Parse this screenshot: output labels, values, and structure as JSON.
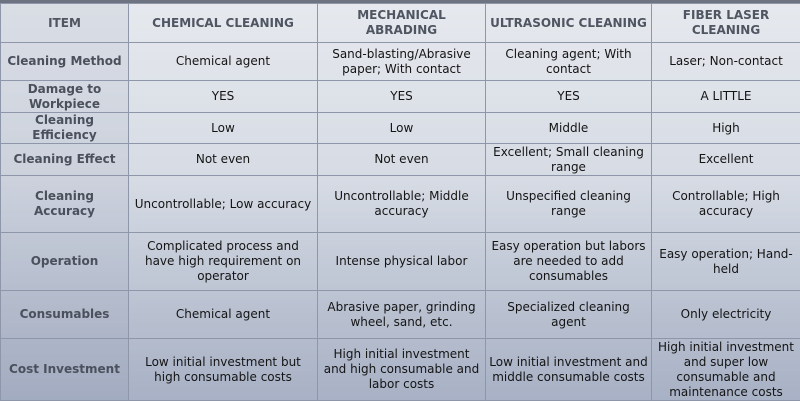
{
  "header": [
    "ITEM",
    "CHEMICAL CLEANING",
    "MECHANICAL ABRADING",
    "ULTRASONIC CLEANING",
    "FIBER LASER CLEANING"
  ],
  "rows": [
    [
      "Cleaning Method",
      "Chemical agent",
      "Sand-blasting/Abrasive paper; With contact",
      "Cleaning agent; With contact",
      "Laser; Non-contact"
    ],
    [
      "Damage to Workpiece",
      "YES",
      "YES",
      "YES",
      "A LITTLE"
    ],
    [
      "Cleaning Efficiency",
      "Low",
      "Low",
      "Middle",
      "High"
    ],
    [
      "Cleaning Effect",
      "Not even",
      "Not even",
      "Excellent; Small cleaning range",
      "Excellent"
    ],
    [
      "Cleaning Accuracy",
      "Uncontrollable; Low accuracy",
      "Uncontrollable; Middle accuracy",
      "Unspecified cleaning range",
      "Controllable; High accuracy"
    ],
    [
      "Operation",
      "Complicated process and have high requirement on operator",
      "Intense physical labor",
      "Easy operation but labors are needed to add consumables",
      "Easy operation; Hand-held"
    ],
    [
      "Consumables",
      "Chemical agent",
      "Abrasive paper, grinding wheel, sand, etc.",
      "Specialized cleaning agent",
      "Only electricity"
    ],
    [
      "Cost Investment",
      "Low initial investment but high consumable costs",
      "High initial investment and high consumable and labor costs",
      "Low initial investment and middle consumable costs",
      "High initial investment and super low consumable and maintenance costs"
    ]
  ]
}
